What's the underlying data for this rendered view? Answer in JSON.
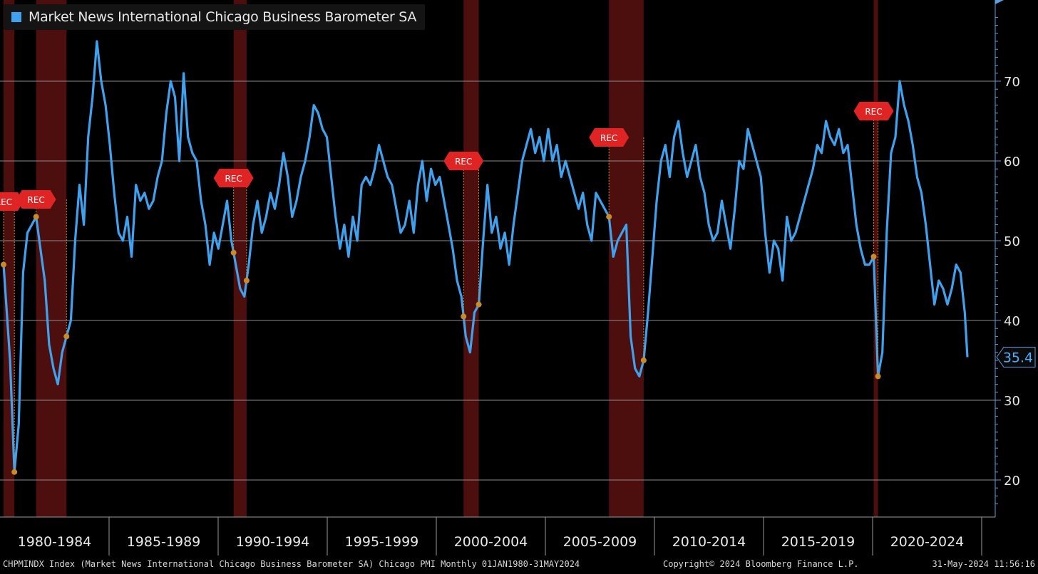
{
  "legend": {
    "label": "Market News International Chicago Business Barometer SA",
    "color": "#3ea2ee"
  },
  "last_value_badge": "35.4",
  "footer": {
    "left": "CHPMINDX Index (Market News International Chicago Business Barometer SA) Chicago PMI  Monthly 01JAN1980-31MAY2024",
    "center": "Copyright© 2024 Bloomberg Finance L.P.",
    "right": "31-May-2024 11:56:16"
  },
  "colors": {
    "background": "#000000",
    "line": "#3ea2ee",
    "recession_band": "#5a1010",
    "rec_marker": "#e02424",
    "dot": "#c98a2a",
    "axis": "#5aa0e0",
    "grid": "#8a8a8a"
  },
  "chart_data": {
    "type": "line",
    "title": "Market News International Chicago Business Barometer SA",
    "ylim": [
      15,
      80
    ],
    "y_ticks": [
      20,
      30,
      40,
      50,
      60,
      70
    ],
    "x_range": [
      1980.0,
      2024.42
    ],
    "x_tick_labels": [
      "1980-1984",
      "1985-1989",
      "1990-1994",
      "1995-1999",
      "2000-2004",
      "2005-2009",
      "2010-2014",
      "2015-2019",
      "2020-2024"
    ],
    "grid": true,
    "legend_position": "top-left",
    "recessions": [
      {
        "start": 1980.0,
        "end": 1980.5,
        "label": "REC"
      },
      {
        "start": 1981.5,
        "end": 1982.9,
        "label": "REC"
      },
      {
        "start": 1990.6,
        "end": 1991.2,
        "label": "REC"
      },
      {
        "start": 2001.2,
        "end": 2001.9,
        "label": "REC"
      },
      {
        "start": 2007.9,
        "end": 2009.5,
        "label": "REC"
      },
      {
        "start": 2020.1,
        "end": 2020.3,
        "label": "REC"
      }
    ],
    "series": [
      {
        "name": "Market News International Chicago Business Barometer SA",
        "points": [
          [
            1980.0,
            47
          ],
          [
            1980.3,
            35
          ],
          [
            1980.5,
            21
          ],
          [
            1980.7,
            27
          ],
          [
            1980.9,
            46
          ],
          [
            1981.1,
            51
          ],
          [
            1981.3,
            52
          ],
          [
            1981.5,
            53
          ],
          [
            1981.7,
            49
          ],
          [
            1981.9,
            45
          ],
          [
            1982.1,
            37
          ],
          [
            1982.3,
            34
          ],
          [
            1982.5,
            32
          ],
          [
            1982.7,
            36
          ],
          [
            1982.9,
            38
          ],
          [
            1983.1,
            40
          ],
          [
            1983.3,
            50
          ],
          [
            1983.5,
            57
          ],
          [
            1983.7,
            52
          ],
          [
            1983.9,
            63
          ],
          [
            1984.1,
            68
          ],
          [
            1984.3,
            75
          ],
          [
            1984.5,
            70
          ],
          [
            1984.7,
            67
          ],
          [
            1984.9,
            62
          ],
          [
            1985.1,
            56
          ],
          [
            1985.3,
            51
          ],
          [
            1985.5,
            50
          ],
          [
            1985.7,
            53
          ],
          [
            1985.9,
            48
          ],
          [
            1986.1,
            57
          ],
          [
            1986.3,
            55
          ],
          [
            1986.5,
            56
          ],
          [
            1986.7,
            54
          ],
          [
            1986.9,
            55
          ],
          [
            1987.1,
            58
          ],
          [
            1987.3,
            60
          ],
          [
            1987.5,
            66
          ],
          [
            1987.7,
            70
          ],
          [
            1987.9,
            68
          ],
          [
            1988.1,
            60
          ],
          [
            1988.3,
            71
          ],
          [
            1988.5,
            63
          ],
          [
            1988.7,
            61
          ],
          [
            1988.9,
            60
          ],
          [
            1989.1,
            55
          ],
          [
            1989.3,
            52
          ],
          [
            1989.5,
            47
          ],
          [
            1989.7,
            51
          ],
          [
            1989.9,
            49
          ],
          [
            1990.1,
            52
          ],
          [
            1990.3,
            55
          ],
          [
            1990.5,
            50
          ],
          [
            1990.7,
            47
          ],
          [
            1990.9,
            44
          ],
          [
            1991.1,
            43
          ],
          [
            1991.3,
            47
          ],
          [
            1991.5,
            52
          ],
          [
            1991.7,
            55
          ],
          [
            1991.9,
            51
          ],
          [
            1992.1,
            53
          ],
          [
            1992.3,
            56
          ],
          [
            1992.5,
            54
          ],
          [
            1992.7,
            57
          ],
          [
            1992.9,
            61
          ],
          [
            1993.1,
            58
          ],
          [
            1993.3,
            53
          ],
          [
            1993.5,
            55
          ],
          [
            1993.7,
            58
          ],
          [
            1993.9,
            60
          ],
          [
            1994.1,
            63
          ],
          [
            1994.3,
            67
          ],
          [
            1994.5,
            66
          ],
          [
            1994.7,
            64
          ],
          [
            1994.9,
            63
          ],
          [
            1995.1,
            58
          ],
          [
            1995.3,
            53
          ],
          [
            1995.5,
            49
          ],
          [
            1995.7,
            52
          ],
          [
            1995.9,
            48
          ],
          [
            1996.1,
            53
          ],
          [
            1996.3,
            50
          ],
          [
            1996.5,
            57
          ],
          [
            1996.7,
            58
          ],
          [
            1996.9,
            57
          ],
          [
            1997.1,
            59
          ],
          [
            1997.3,
            62
          ],
          [
            1997.5,
            60
          ],
          [
            1997.7,
            58
          ],
          [
            1997.9,
            57
          ],
          [
            1998.1,
            54
          ],
          [
            1998.3,
            51
          ],
          [
            1998.5,
            52
          ],
          [
            1998.7,
            55
          ],
          [
            1998.9,
            51
          ],
          [
            1999.1,
            57
          ],
          [
            1999.3,
            60
          ],
          [
            1999.5,
            55
          ],
          [
            1999.7,
            59
          ],
          [
            1999.9,
            57
          ],
          [
            2000.1,
            58
          ],
          [
            2000.3,
            55
          ],
          [
            2000.5,
            52
          ],
          [
            2000.7,
            49
          ],
          [
            2000.9,
            45
          ],
          [
            2001.1,
            43
          ],
          [
            2001.3,
            38
          ],
          [
            2001.5,
            36
          ],
          [
            2001.7,
            41
          ],
          [
            2001.9,
            42
          ],
          [
            2002.1,
            50
          ],
          [
            2002.3,
            57
          ],
          [
            2002.5,
            51
          ],
          [
            2002.7,
            53
          ],
          [
            2002.9,
            49
          ],
          [
            2003.1,
            51
          ],
          [
            2003.3,
            47
          ],
          [
            2003.5,
            52
          ],
          [
            2003.7,
            56
          ],
          [
            2003.9,
            60
          ],
          [
            2004.1,
            62
          ],
          [
            2004.3,
            64
          ],
          [
            2004.5,
            61
          ],
          [
            2004.7,
            63
          ],
          [
            2004.9,
            60
          ],
          [
            2005.1,
            64
          ],
          [
            2005.3,
            60
          ],
          [
            2005.5,
            62
          ],
          [
            2005.7,
            58
          ],
          [
            2005.9,
            60
          ],
          [
            2006.1,
            58
          ],
          [
            2006.3,
            56
          ],
          [
            2006.5,
            54
          ],
          [
            2006.7,
            56
          ],
          [
            2006.9,
            52
          ],
          [
            2007.1,
            50
          ],
          [
            2007.3,
            56
          ],
          [
            2007.5,
            55
          ],
          [
            2007.7,
            54
          ],
          [
            2007.9,
            53
          ],
          [
            2008.1,
            48
          ],
          [
            2008.3,
            50
          ],
          [
            2008.5,
            51
          ],
          [
            2008.7,
            52
          ],
          [
            2008.9,
            38
          ],
          [
            2009.1,
            34
          ],
          [
            2009.3,
            33
          ],
          [
            2009.5,
            35
          ],
          [
            2009.7,
            41
          ],
          [
            2009.9,
            48
          ],
          [
            2010.1,
            55
          ],
          [
            2010.3,
            60
          ],
          [
            2010.5,
            62
          ],
          [
            2010.7,
            58
          ],
          [
            2010.9,
            63
          ],
          [
            2011.1,
            65
          ],
          [
            2011.3,
            61
          ],
          [
            2011.5,
            58
          ],
          [
            2011.7,
            60
          ],
          [
            2011.9,
            62
          ],
          [
            2012.1,
            58
          ],
          [
            2012.3,
            56
          ],
          [
            2012.5,
            52
          ],
          [
            2012.7,
            50
          ],
          [
            2012.9,
            51
          ],
          [
            2013.1,
            55
          ],
          [
            2013.3,
            52
          ],
          [
            2013.5,
            49
          ],
          [
            2013.7,
            54
          ],
          [
            2013.9,
            60
          ],
          [
            2014.1,
            59
          ],
          [
            2014.3,
            64
          ],
          [
            2014.5,
            62
          ],
          [
            2014.7,
            60
          ],
          [
            2014.9,
            58
          ],
          [
            2015.1,
            51
          ],
          [
            2015.3,
            46
          ],
          [
            2015.5,
            50
          ],
          [
            2015.7,
            49
          ],
          [
            2015.9,
            45
          ],
          [
            2016.1,
            53
          ],
          [
            2016.3,
            50
          ],
          [
            2016.5,
            51
          ],
          [
            2016.7,
            53
          ],
          [
            2016.9,
            55
          ],
          [
            2017.1,
            57
          ],
          [
            2017.3,
            59
          ],
          [
            2017.5,
            62
          ],
          [
            2017.7,
            61
          ],
          [
            2017.9,
            65
          ],
          [
            2018.1,
            63
          ],
          [
            2018.3,
            62
          ],
          [
            2018.5,
            64
          ],
          [
            2018.7,
            61
          ],
          [
            2018.9,
            62
          ],
          [
            2019.1,
            57
          ],
          [
            2019.3,
            52
          ],
          [
            2019.5,
            49
          ],
          [
            2019.7,
            47
          ],
          [
            2019.9,
            47
          ],
          [
            2020.1,
            48
          ],
          [
            2020.3,
            33
          ],
          [
            2020.5,
            36
          ],
          [
            2020.7,
            51
          ],
          [
            2020.9,
            61
          ],
          [
            2021.1,
            63
          ],
          [
            2021.3,
            70
          ],
          [
            2021.5,
            67
          ],
          [
            2021.7,
            65
          ],
          [
            2021.9,
            62
          ],
          [
            2022.1,
            58
          ],
          [
            2022.3,
            56
          ],
          [
            2022.5,
            52
          ],
          [
            2022.7,
            47
          ],
          [
            2022.9,
            42
          ],
          [
            2023.1,
            45
          ],
          [
            2023.3,
            44
          ],
          [
            2023.5,
            42
          ],
          [
            2023.7,
            44
          ],
          [
            2023.9,
            47
          ],
          [
            2024.1,
            46
          ],
          [
            2024.3,
            41
          ],
          [
            2024.42,
            35.4
          ]
        ]
      }
    ]
  }
}
